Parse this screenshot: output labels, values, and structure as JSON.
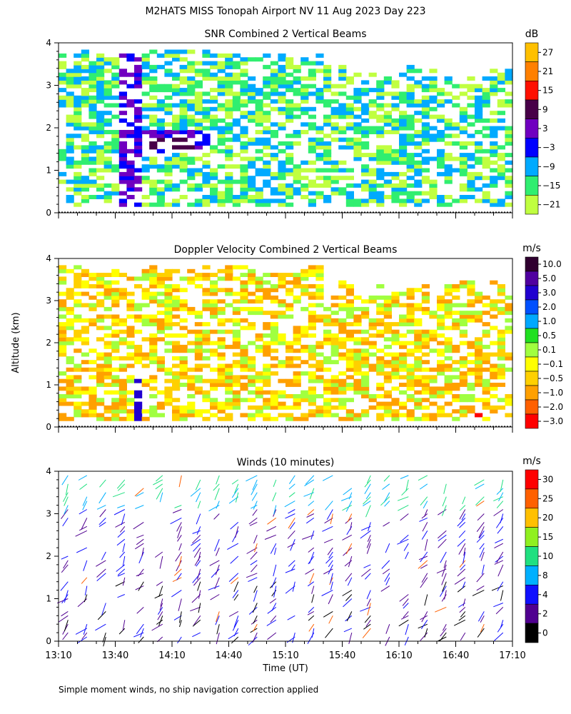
{
  "figure": {
    "title": "M2HATS MISS Tonopah Airport NV  11 Aug 2023 Day 223",
    "y_axis_label": "Altitude (km)",
    "x_axis_label": "Time (UT)",
    "footnote": "Simple moment winds, no ship navigation correction applied"
  },
  "chart_data": [
    {
      "type": "heatmap",
      "title": "SNR Combined 2 Vertical Beams",
      "colorbar_unit": "dB",
      "colorbar_ticks": [
        "27",
        "21",
        "15",
        "9",
        "3",
        "−3",
        "−9",
        "−15",
        "−21"
      ],
      "colorbar_colors": [
        "#ffc000",
        "#ff8000",
        "#ff1000",
        "#480048",
        "#7000c0",
        "#0000ff",
        "#00aaff",
        "#30ee70",
        "#c0ff40"
      ],
      "ylim": [
        0,
        4
      ],
      "y_ticks": [
        "0",
        "1",
        "2",
        "3",
        "4"
      ],
      "xlim_minutes_since_1310": [
        0,
        240
      ]
    },
    {
      "type": "heatmap",
      "title": "Doppler Velocity Combined 2 Vertical Beams",
      "colorbar_unit": "m/s",
      "colorbar_ticks": [
        "10.0",
        "5.0",
        "3.0",
        "2.0",
        "1.0",
        "0.5",
        "0.1",
        "−0.1",
        "−0.5",
        "−1.0",
        "−2.0",
        "−3.0"
      ],
      "colorbar_colors": [
        "#300030",
        "#5000a0",
        "#2000d0",
        "#0050ff",
        "#00a8ff",
        "#20e020",
        "#a0ff40",
        "#ffff00",
        "#ffd000",
        "#ffa000",
        "#ff6000",
        "#ff0000"
      ],
      "ylim": [
        0,
        4
      ],
      "y_ticks": [
        "0",
        "1",
        "2",
        "3",
        "4"
      ],
      "xlim_minutes_since_1310": [
        0,
        240
      ]
    },
    {
      "type": "scatter",
      "title": "Winds (10 minutes)",
      "colorbar_unit": "m/s",
      "colorbar_ticks": [
        "30",
        "25",
        "20",
        "15",
        "10",
        "8",
        "4",
        "2",
        "0"
      ],
      "colorbar_colors": [
        "#ff0000",
        "#ff6000",
        "#ffc000",
        "#90f020",
        "#20e080",
        "#00b0ff",
        "#1010ff",
        "#500090",
        "#000000"
      ],
      "ylim": [
        0,
        4
      ],
      "y_ticks": [
        "0",
        "1",
        "2",
        "3",
        "4"
      ],
      "x_tick_labels": [
        "13:10",
        "13:40",
        "14:10",
        "14:40",
        "15:10",
        "15:40",
        "16:10",
        "16:40",
        "17:10"
      ],
      "xlim_minutes_since_1310": [
        0,
        240
      ]
    }
  ]
}
